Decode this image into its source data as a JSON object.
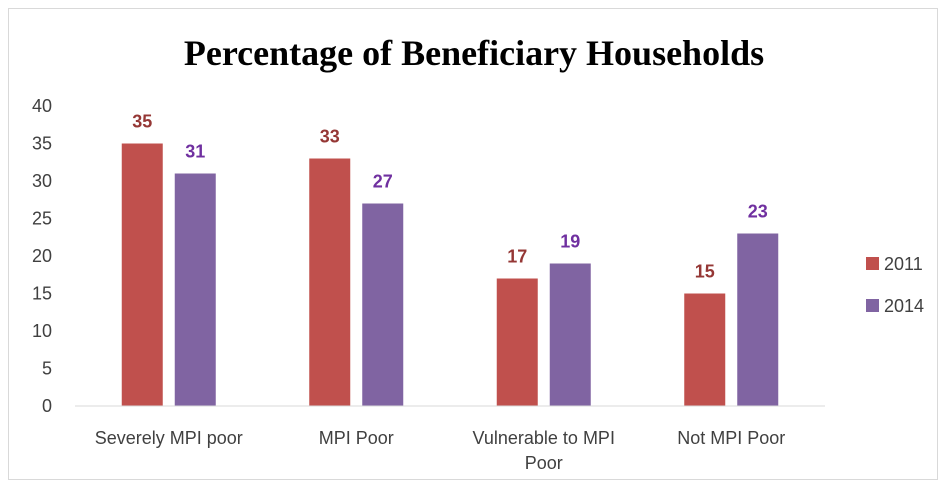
{
  "chart_data": {
    "type": "bar",
    "title": "Percentage of Beneficiary Households",
    "categories": [
      "Severely MPI poor",
      "MPI Poor",
      "Vulnerable to MPI Poor",
      "Not MPI Poor"
    ],
    "category_lines": [
      [
        "Severely MPI poor"
      ],
      [
        "MPI Poor"
      ],
      [
        "Vulnerable to MPI",
        "Poor"
      ],
      [
        "Not MPI Poor"
      ]
    ],
    "series": [
      {
        "name": "2011",
        "values": [
          35,
          33,
          17,
          15
        ],
        "color": "#c0504d",
        "label_color": "#953735"
      },
      {
        "name": "2014",
        "values": [
          31,
          27,
          19,
          23
        ],
        "color": "#8064a2",
        "label_color": "#7030a0"
      }
    ],
    "ylim": [
      0,
      40
    ],
    "yticks": [
      0,
      5,
      10,
      15,
      20,
      25,
      30,
      35,
      40
    ],
    "grid": false,
    "legend_position": "right",
    "data_labels": true
  }
}
